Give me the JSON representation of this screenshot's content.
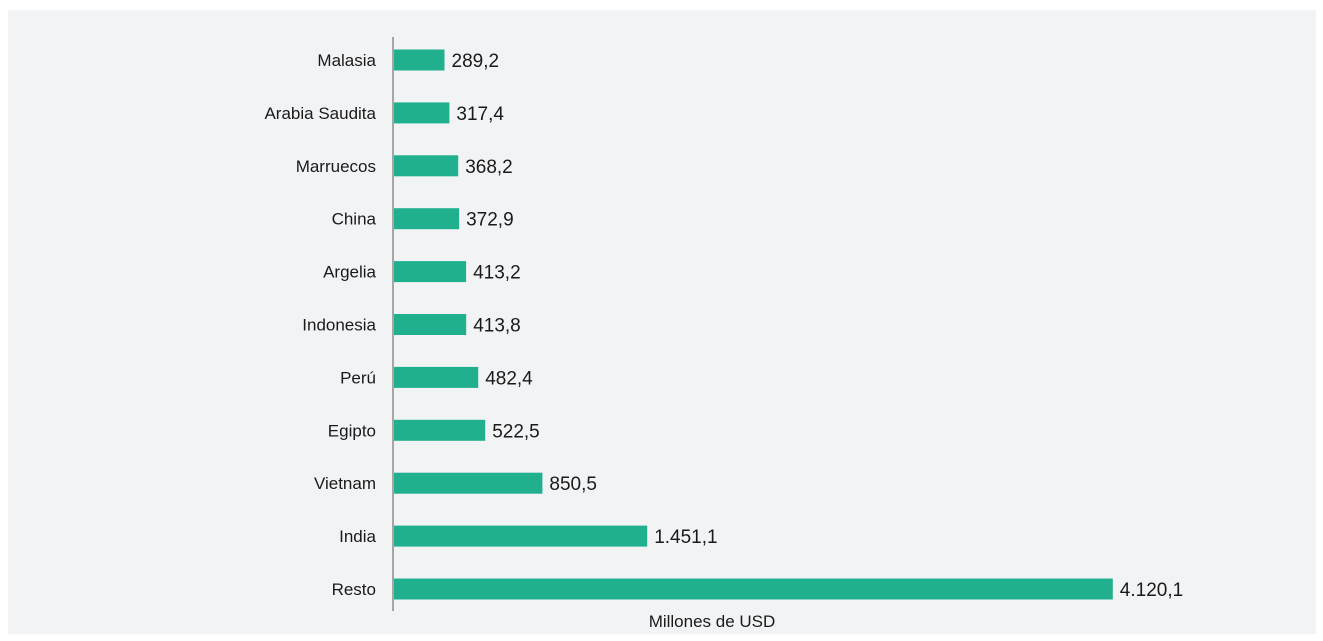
{
  "chart_data": {
    "type": "bar",
    "orientation": "horizontal",
    "categories": [
      "Malasia",
      "Arabia Saudita",
      "Marruecos",
      "China",
      "Argelia",
      "Indonesia",
      "Perú",
      "Egipto",
      "Vietnam",
      "India",
      "Resto"
    ],
    "values": [
      289.2,
      317.4,
      368.2,
      372.9,
      413.2,
      413.8,
      482.4,
      522.5,
      850.5,
      1451.1,
      4120.1
    ],
    "value_labels": [
      "289,2",
      "317,4",
      "368,2",
      "372,9",
      "413,2",
      "413,8",
      "482,4",
      "522,5",
      "850,5",
      "1.451,1",
      "4.120,1"
    ],
    "xlabel": "Millones de USD",
    "ylabel": "",
    "title": "",
    "xlim": [
      0,
      4700
    ],
    "grid": false,
    "legend": "none",
    "bar_color": "#21b08e",
    "axis_color": "#8c8c8c"
  }
}
